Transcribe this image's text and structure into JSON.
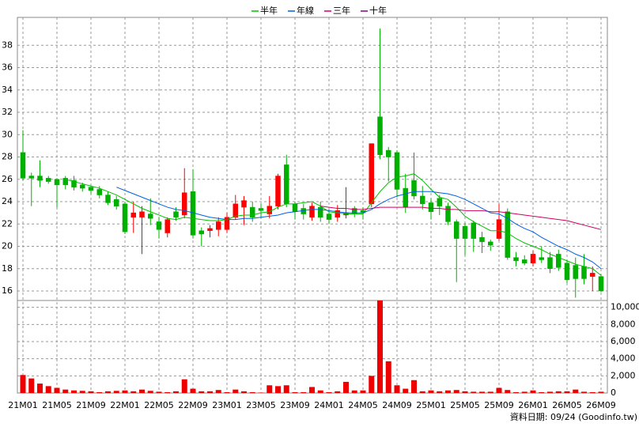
{
  "chart_data": [
    {
      "type": "candlestick",
      "legend": "top",
      "grid": true,
      "note": "資料日期: 09/24 (Goodinfo.tw)",
      "up_color": "#ff0000",
      "down_color": "#00b000",
      "categories": [
        "21M01",
        null,
        null,
        null,
        "21M05",
        null,
        null,
        null,
        "21M09",
        null,
        null,
        null,
        "22M01",
        null,
        null,
        null,
        "22M05",
        null,
        null,
        null,
        "22M09",
        null,
        null,
        null,
        "23M01",
        null,
        null,
        null,
        "23M05",
        null,
        null,
        null,
        "23M09",
        null,
        null,
        null,
        "24M01",
        null,
        null,
        null,
        "24M05",
        null,
        null,
        null,
        "24M09",
        null,
        null,
        null,
        "25M01",
        null,
        null,
        null,
        "25M05",
        null,
        null,
        null,
        "25M09",
        null,
        null,
        null,
        "26M01",
        null,
        null,
        null,
        "26M05",
        null,
        null,
        null,
        "26M09"
      ],
      "open": [
        28.4,
        26.3,
        26.3,
        26.1,
        26.0,
        26.1,
        25.9,
        25.5,
        25.3,
        25.1,
        24.6,
        24.2,
        23.8,
        22.6,
        22.6,
        22.9,
        22.2,
        21.2,
        23.1,
        22.8,
        24.9,
        21.4,
        21.4,
        21.5,
        21.5,
        22.6,
        23.5,
        23.5,
        23.4,
        22.9,
        23.6,
        27.3,
        23.8,
        23.4,
        22.6,
        23.5,
        22.9,
        22.6,
        22.8,
        23.4,
        23.2,
        23.8,
        31.6,
        28.6,
        28.4,
        25.2,
        25.9,
        24.5,
        23.9,
        24.3,
        23.6,
        22.2,
        21.8,
        22.1,
        20.8,
        20.4,
        20.7,
        23.1,
        19.0,
        18.8,
        18.5,
        19.0,
        19.0,
        19.3,
        18.5,
        18.3,
        18.2,
        17.3,
        17.3
      ],
      "high": [
        30.4,
        26.6,
        27.7,
        26.3,
        26.1,
        26.3,
        26.3,
        25.7,
        25.4,
        25.4,
        24.9,
        24.5,
        24.0,
        24.0,
        23.6,
        24.3,
        22.6,
        22.6,
        23.5,
        27.0,
        26.9,
        21.7,
        21.9,
        22.6,
        23.0,
        24.6,
        24.5,
        24.0,
        23.8,
        24.5,
        26.5,
        28.2,
        24.0,
        23.8,
        23.9,
        24.0,
        23.3,
        23.7,
        25.3,
        23.6,
        23.5,
        29.2,
        39.5,
        28.9,
        28.6,
        26.5,
        28.4,
        25.4,
        24.3,
        24.6,
        23.9,
        22.4,
        22.1,
        22.3,
        21.3,
        20.6,
        23.8,
        23.4,
        19.5,
        19.2,
        19.6,
        20.0,
        19.5,
        19.7,
        18.8,
        19.0,
        19.3,
        18.2,
        17.5
      ],
      "low": [
        25.9,
        23.6,
        25.3,
        25.6,
        23.5,
        25.1,
        25.0,
        24.9,
        24.7,
        24.3,
        23.7,
        23.3,
        21.1,
        21.2,
        19.3,
        21.9,
        20.7,
        20.8,
        22.3,
        22.5,
        20.7,
        20.0,
        20.8,
        20.9,
        21.2,
        22.4,
        21.9,
        22.2,
        22.5,
        22.5,
        23.3,
        23.5,
        22.4,
        22.4,
        22.3,
        22.2,
        22.0,
        22.2,
        22.5,
        22.6,
        22.4,
        23.5,
        27.8,
        25.8,
        24.4,
        23.0,
        24.2,
        23.3,
        22.4,
        22.8,
        21.9,
        16.8,
        19.2,
        19.5,
        19.4,
        19.6,
        20.5,
        18.8,
        18.2,
        18.3,
        18.2,
        18.5,
        17.6,
        17.8,
        16.7,
        15.4,
        16.6,
        16.0,
        15.9
      ],
      "close": [
        26.1,
        26.1,
        25.9,
        25.8,
        25.5,
        25.5,
        25.3,
        25.2,
        25.0,
        24.6,
        23.9,
        23.6,
        21.3,
        23.0,
        23.1,
        22.5,
        21.5,
        22.4,
        22.6,
        24.8,
        21.0,
        21.1,
        21.6,
        22.2,
        22.6,
        23.8,
        24.1,
        22.6,
        23.2,
        23.6,
        26.3,
        23.8,
        23.1,
        22.9,
        23.6,
        22.6,
        22.4,
        23.2,
        23.0,
        22.9,
        23.0,
        29.2,
        28.2,
        28.0,
        25.1,
        23.5,
        24.5,
        23.8,
        23.1,
        23.6,
        22.2,
        20.7,
        20.7,
        20.7,
        20.4,
        20.1,
        22.4,
        19.0,
        18.7,
        18.5,
        19.3,
        18.8,
        18.0,
        18.1,
        17.0,
        17.1,
        17.1,
        17.6,
        16.0
      ],
      "series": [
        {
          "name": "半年",
          "color": "#00c000",
          "values": [
            null,
            null,
            null,
            null,
            null,
            26.0,
            25.8,
            25.6,
            25.4,
            25.2,
            24.9,
            24.6,
            24.2,
            23.8,
            23.4,
            23.1,
            22.8,
            22.5,
            22.4,
            22.6,
            22.5,
            22.4,
            22.3,
            22.3,
            22.4,
            22.7,
            22.8,
            22.8,
            23.0,
            23.1,
            23.5,
            23.8,
            23.8,
            23.9,
            24.0,
            23.6,
            23.1,
            23.0,
            22.9,
            22.9,
            22.9,
            23.9,
            24.9,
            25.7,
            26.2,
            26.3,
            26.5,
            25.9,
            25.1,
            24.4,
            24.2,
            23.5,
            22.7,
            22.2,
            21.8,
            21.4,
            21.4,
            21.2,
            20.7,
            20.3,
            20.0,
            19.7,
            19.3,
            19.0,
            18.7,
            18.4,
            18.2,
            18.0,
            17.4
          ]
        },
        {
          "name": "年線",
          "color": "#0060e0",
          "values": [
            null,
            null,
            null,
            null,
            null,
            null,
            null,
            null,
            null,
            null,
            null,
            25.3,
            25.0,
            24.7,
            24.4,
            24.1,
            23.8,
            23.5,
            23.3,
            23.2,
            23.0,
            22.8,
            22.6,
            22.5,
            22.4,
            22.4,
            22.5,
            22.5,
            22.6,
            22.7,
            22.8,
            23.0,
            23.1,
            23.2,
            23.3,
            23.3,
            23.2,
            23.1,
            23.0,
            23.0,
            23.0,
            23.3,
            23.8,
            24.2,
            24.5,
            24.7,
            24.9,
            24.9,
            24.9,
            24.8,
            24.7,
            24.5,
            24.2,
            23.8,
            23.4,
            23.0,
            22.9,
            22.5,
            22.0,
            21.6,
            21.3,
            20.8,
            20.4,
            20.0,
            19.7,
            19.3,
            19.0,
            18.6,
            18.0
          ]
        },
        {
          "name": "三年",
          "color": "#d00060",
          "values": [
            null,
            null,
            null,
            null,
            null,
            null,
            null,
            null,
            null,
            null,
            null,
            null,
            null,
            null,
            null,
            null,
            null,
            null,
            null,
            null,
            null,
            null,
            null,
            null,
            null,
            null,
            null,
            null,
            null,
            null,
            null,
            null,
            null,
            null,
            null,
            23.6,
            23.5,
            23.4,
            23.4,
            23.3,
            23.3,
            23.4,
            23.5,
            23.5,
            23.5,
            23.5,
            23.5,
            23.5,
            23.4,
            23.4,
            23.3,
            23.3,
            23.2,
            23.2,
            23.2,
            23.1,
            23.1,
            23.0,
            22.9,
            22.8,
            22.7,
            22.6,
            22.5,
            22.4,
            22.3,
            22.1,
            21.9,
            21.7,
            21.5
          ]
        },
        {
          "name": "十年",
          "color": "#800080",
          "values": [
            null,
            null,
            null,
            null,
            null,
            null,
            null,
            null,
            null,
            null,
            null,
            null,
            null,
            null,
            null,
            null,
            null,
            null,
            null,
            null,
            null,
            null,
            null,
            null,
            null,
            null,
            null,
            null,
            null,
            null,
            null,
            null,
            null,
            null,
            null,
            null,
            null,
            null,
            null,
            null,
            null,
            null,
            null,
            null,
            null,
            null,
            null,
            null,
            null,
            null,
            null,
            null,
            null,
            null,
            null,
            null,
            null,
            null,
            null,
            null,
            null,
            null,
            null,
            null,
            null,
            null,
            null,
            null,
            null
          ]
        }
      ],
      "ylim": [
        15.15,
        40.5
      ],
      "yticks": [
        16,
        18,
        20,
        22,
        24,
        26,
        28,
        30,
        32,
        34,
        36,
        38
      ]
    },
    {
      "type": "bar",
      "color": "#ee0000",
      "grid": true,
      "values": [
        2100,
        1700,
        1100,
        800,
        600,
        400,
        300,
        250,
        200,
        100,
        200,
        250,
        300,
        200,
        400,
        250,
        150,
        100,
        200,
        1600,
        500,
        200,
        200,
        350,
        100,
        400,
        200,
        100,
        50,
        900,
        800,
        900,
        100,
        100,
        700,
        300,
        100,
        200,
        1300,
        300,
        300,
        2000,
        10800,
        3700,
        900,
        500,
        1500,
        200,
        300,
        200,
        300,
        350,
        200,
        150,
        150,
        150,
        600,
        350,
        100,
        150,
        300,
        100,
        150,
        200,
        200,
        400,
        150,
        100,
        150
      ],
      "ylim": [
        0,
        10800
      ],
      "yticks": [
        0,
        {
          "value": 2000,
          "label": "2,000"
        },
        {
          "value": 4000,
          "label": "4,000"
        },
        {
          "value": 6000,
          "label": "6,000"
        },
        {
          "value": 8000,
          "label": "8,000"
        },
        {
          "value": 10000,
          "label": "10,000"
        }
      ]
    }
  ]
}
